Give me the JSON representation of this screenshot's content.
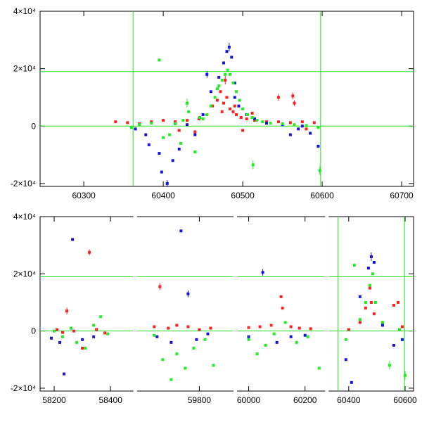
{
  "chart_data": [
    {
      "type": "scatter",
      "panel": "top",
      "title": "",
      "xlabel": "",
      "ylabel": "",
      "xlim": [
        60245,
        60715
      ],
      "ylim": [
        -21000,
        40000
      ],
      "xticks": [
        {
          "v": 60300,
          "label": "60300"
        },
        {
          "v": 60400,
          "label": "60400"
        },
        {
          "v": 60500,
          "label": "60500"
        },
        {
          "v": 60600,
          "label": "60600"
        },
        {
          "v": 60700,
          "label": "60700"
        }
      ],
      "yticks": [
        {
          "v": 40000,
          "label": "4×10⁴"
        },
        {
          "v": 20000,
          "label": "2×10⁴"
        },
        {
          "v": 0,
          "label": "0"
        },
        {
          "v": -20000,
          "label": "-2×10⁴"
        }
      ],
      "reference_lines": {
        "vertical": [
          60362,
          60598
        ],
        "horizontal": [
          19000,
          0
        ],
        "color": "#22dd22"
      },
      "series": [
        {
          "name": "red",
          "color": "#ff2020",
          "points": [
            [
              60340,
              1500
            ],
            [
              60355,
              1200
            ],
            [
              60370,
              800
            ],
            [
              60385,
              1500
            ],
            [
              60400,
              2000
            ],
            [
              60415,
              1500
            ],
            [
              60430,
              2000
            ],
            [
              60445,
              2500
            ],
            [
              60455,
              4000
            ],
            [
              60462,
              7000
            ],
            [
              60468,
              9000
            ],
            [
              60472,
              12000
            ],
            [
              60476,
              8000
            ],
            [
              60480,
              10000
            ],
            [
              60484,
              6000
            ],
            [
              60488,
              5000
            ],
            [
              60492,
              4000
            ],
            [
              60498,
              3000
            ],
            [
              60505,
              2500
            ],
            [
              60515,
              2000
            ],
            [
              60530,
              1500
            ],
            [
              60545,
              1500
            ],
            [
              60560,
              1200
            ],
            [
              60575,
              1500
            ],
            [
              60590,
              1200
            ],
            [
              60478,
              16000
            ],
            [
              60474,
              5000
            ],
            [
              60490,
              7000
            ],
            [
              60512,
              4500
            ],
            [
              60545,
              10000
            ],
            [
              60563,
              10500
            ],
            [
              60565,
              8000
            ],
            [
              60420,
              -1500
            ],
            [
              60440,
              -2000
            ],
            [
              60500,
              -1500
            ],
            [
              60580,
              -1000
            ]
          ],
          "errors": [
            [
              60545,
              10000,
              1200
            ],
            [
              60563,
              10500,
              1200
            ],
            [
              60565,
              8000,
              1000
            ],
            [
              60478,
              16000,
              1500
            ]
          ]
        },
        {
          "name": "blue",
          "color": "#1515e0",
          "points": [
            [
              60365,
              -1000
            ],
            [
              60378,
              -3000
            ],
            [
              60382,
              -6500
            ],
            [
              60395,
              -9500
            ],
            [
              60398,
              -16000
            ],
            [
              60405,
              -20000
            ],
            [
              60412,
              -12000
            ],
            [
              60430,
              500
            ],
            [
              60450,
              4000
            ],
            [
              60460,
              12000
            ],
            [
              60470,
              17000
            ],
            [
              60476,
              22000
            ],
            [
              60480,
              26000
            ],
            [
              60483,
              27500
            ],
            [
              60486,
              24000
            ],
            [
              60490,
              15000
            ],
            [
              60495,
              7000
            ],
            [
              60505,
              4000
            ],
            [
              60515,
              2500
            ],
            [
              60530,
              1000
            ],
            [
              60550,
              500
            ],
            [
              60570,
              -1000
            ],
            [
              60585,
              -2500
            ],
            [
              60595,
              -7000
            ],
            [
              60455,
              18000
            ],
            [
              60490,
              10000
            ],
            [
              60420,
              -8000
            ],
            [
              60440,
              -3000
            ],
            [
              60560,
              -3000
            ],
            [
              60575,
              0
            ]
          ],
          "errors": [
            [
              60483,
              27500,
              1500
            ],
            [
              60455,
              18000,
              1200
            ],
            [
              60405,
              -20000,
              1200
            ]
          ]
        },
        {
          "name": "green",
          "color": "#20ee20",
          "points": [
            [
              60360,
              -500
            ],
            [
              60370,
              500
            ],
            [
              60385,
              1000
            ],
            [
              60395,
              23000
            ],
            [
              60400,
              -4000
            ],
            [
              60408,
              -3000
            ],
            [
              60415,
              800
            ],
            [
              60425,
              2000
            ],
            [
              60430,
              8000
            ],
            [
              60432,
              5000
            ],
            [
              60440,
              -9000
            ],
            [
              60450,
              2500
            ],
            [
              60455,
              4000
            ],
            [
              60460,
              7000
            ],
            [
              60465,
              10000
            ],
            [
              60470,
              14000
            ],
            [
              60474,
              16000
            ],
            [
              60478,
              18000
            ],
            [
              60481,
              19500
            ],
            [
              60484,
              18000
            ],
            [
              60488,
              15000
            ],
            [
              60492,
              12000
            ],
            [
              60496,
              9000
            ],
            [
              60500,
              6000
            ],
            [
              60506,
              4000
            ],
            [
              60512,
              3000
            ],
            [
              60518,
              2000
            ],
            [
              60525,
              1500
            ],
            [
              60535,
              1000
            ],
            [
              60550,
              800
            ],
            [
              60565,
              500
            ],
            [
              60580,
              200
            ],
            [
              60595,
              -500
            ],
            [
              60597,
              -15500
            ],
            [
              60513,
              -13500
            ],
            [
              60468,
              13000
            ],
            [
              60446,
              3000
            ],
            [
              60422,
              -6000
            ]
          ],
          "errors": [
            [
              60513,
              -13500,
              1500
            ],
            [
              60430,
              8000,
              1500
            ],
            [
              60597,
              -15500,
              1500
            ]
          ]
        }
      ]
    },
    {
      "type": "scatter",
      "panel": "bottom",
      "title": "",
      "xlabel": "",
      "ylabel": "",
      "segments": [
        {
          "xlim": [
            58150,
            58480
          ],
          "xticks": [
            {
              "v": 58200,
              "label": "58200"
            },
            {
              "v": 58400,
              "label": "58400"
            }
          ]
        },
        {
          "xlim": [
            59580,
            59920
          ],
          "xticks": [
            {
              "v": 59800,
              "label": "59800"
            }
          ]
        },
        {
          "xlim": [
            59960,
            60270
          ],
          "xticks": [
            {
              "v": 60000,
              "label": "60000"
            },
            {
              "v": 60200,
              "label": "60200"
            }
          ]
        },
        {
          "xlim": [
            60330,
            60630
          ],
          "xticks": [
            {
              "v": 60400,
              "label": "60400"
            },
            {
              "v": 60600,
              "label": "60600"
            }
          ]
        }
      ],
      "ylim": [
        -21000,
        40000
      ],
      "yticks": [
        {
          "v": 40000,
          "label": "4×10⁴"
        },
        {
          "v": 20000,
          "label": "2×10⁴"
        },
        {
          "v": 0,
          "label": "0"
        },
        {
          "v": -20000,
          "label": "-2×10⁴"
        }
      ],
      "reference_lines": {
        "vertical": [
          60362,
          60598
        ],
        "horizontal": [
          19000,
          0
        ],
        "color": "#22dd22"
      },
      "series": [
        {
          "name": "red",
          "color": "#ff2020",
          "points": [
            [
              58210,
              500
            ],
            [
              58230,
              -500
            ],
            [
              58245,
              7000
            ],
            [
              58270,
              0
            ],
            [
              58300,
              -6000
            ],
            [
              58325,
              27500
            ],
            [
              58350,
              500
            ],
            [
              58380,
              -700
            ],
            [
              59640,
              1500
            ],
            [
              59660,
              15500
            ],
            [
              59690,
              1000
            ],
            [
              59720,
              2000
            ],
            [
              59760,
              1500
            ],
            [
              59800,
              500
            ],
            [
              59840,
              1000
            ],
            [
              60000,
              1200
            ],
            [
              60040,
              1500
            ],
            [
              60080,
              2000
            ],
            [
              60115,
              12000
            ],
            [
              60120,
              8000
            ],
            [
              60150,
              1500
            ],
            [
              60180,
              1000
            ],
            [
              60220,
              800
            ],
            [
              60400,
              500
            ],
            [
              60440,
              3000
            ],
            [
              60460,
              8000
            ],
            [
              60475,
              15000
            ],
            [
              60480,
              10000
            ],
            [
              60490,
              6000
            ],
            [
              60520,
              3000
            ],
            [
              60560,
              9000
            ],
            [
              60575,
              10000
            ],
            [
              60590,
              1500
            ]
          ],
          "errors": [
            [
              58325,
              27500,
              1000
            ],
            [
              58245,
              7000,
              1200
            ],
            [
              59660,
              15500,
              1200
            ]
          ]
        },
        {
          "name": "blue",
          "color": "#1515e0",
          "points": [
            [
              58190,
              -2500
            ],
            [
              58220,
              -4000
            ],
            [
              58235,
              -15000
            ],
            [
              58265,
              32000
            ],
            [
              58300,
              -3000
            ],
            [
              58340,
              -2000
            ],
            [
              59650,
              -2000
            ],
            [
              59700,
              -4000
            ],
            [
              59735,
              35000
            ],
            [
              59760,
              13000
            ],
            [
              59790,
              -3000
            ],
            [
              59830,
              -1000
            ],
            [
              60050,
              20500
            ],
            [
              60000,
              -2000
            ],
            [
              60100,
              -4000
            ],
            [
              60150,
              -2000
            ],
            [
              60200,
              -1500
            ],
            [
              60390,
              -10000
            ],
            [
              60410,
              -18000
            ],
            [
              60440,
              12000
            ],
            [
              60470,
              22000
            ],
            [
              60480,
              26000
            ],
            [
              60490,
              24000
            ],
            [
              60520,
              2000
            ],
            [
              60560,
              -5000
            ],
            [
              60590,
              -3000
            ]
          ],
          "errors": [
            [
              60050,
              20500,
              1200
            ],
            [
              60480,
              26000,
              1500
            ],
            [
              59760,
              13000,
              1200
            ]
          ]
        },
        {
          "name": "green",
          "color": "#20ee20",
          "points": [
            [
              58200,
              0
            ],
            [
              58230,
              -2000
            ],
            [
              58260,
              1000
            ],
            [
              58280,
              -4000
            ],
            [
              58310,
              -6000
            ],
            [
              58340,
              2000
            ],
            [
              58365,
              5000
            ],
            [
              58390,
              -1000
            ],
            [
              59640,
              -1500
            ],
            [
              59670,
              -10000
            ],
            [
              59700,
              -17000
            ],
            [
              59720,
              -8000
            ],
            [
              59750,
              -13000
            ],
            [
              59780,
              -6000
            ],
            [
              59820,
              -3000
            ],
            [
              59850,
              -12000
            ],
            [
              60000,
              -3000
            ],
            [
              60030,
              -8000
            ],
            [
              60060,
              -5000
            ],
            [
              60090,
              -1000
            ],
            [
              60130,
              3000
            ],
            [
              60170,
              -4000
            ],
            [
              60210,
              -2000
            ],
            [
              60250,
              -13000
            ],
            [
              60390,
              -3000
            ],
            [
              60420,
              23000
            ],
            [
              60440,
              4000
            ],
            [
              60460,
              10000
            ],
            [
              60475,
              16000
            ],
            [
              60485,
              20000
            ],
            [
              60495,
              10000
            ],
            [
              60520,
              3000
            ],
            [
              60545,
              -12000
            ],
            [
              60580,
              500
            ],
            [
              60600,
              -15500
            ]
          ],
          "errors": [
            [
              60545,
              -12000,
              1500
            ],
            [
              60600,
              -15500,
              1500
            ]
          ]
        }
      ]
    }
  ]
}
